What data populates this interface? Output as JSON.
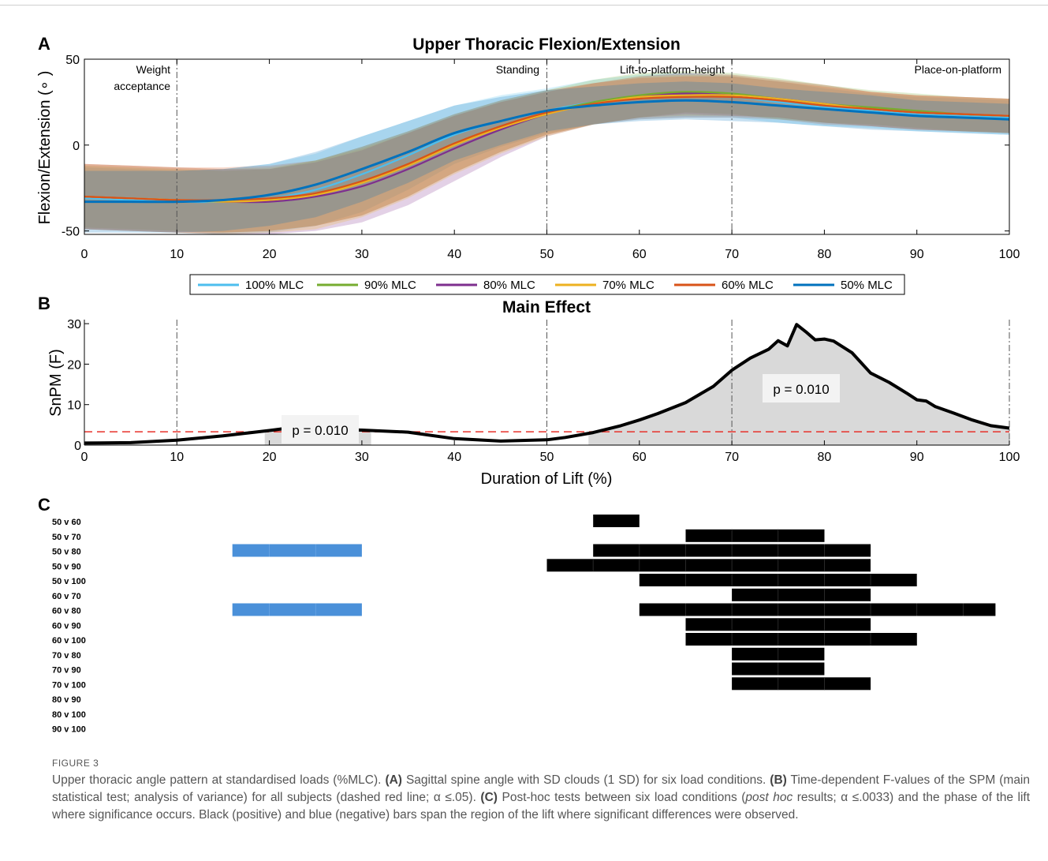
{
  "panels": {
    "a_label": "A",
    "b_label": "B",
    "c_label": "C"
  },
  "legend": [
    {
      "name": "100% MLC",
      "color": "#4dbeee"
    },
    {
      "name": "90% MLC",
      "color": "#77ac30"
    },
    {
      "name": "80% MLC",
      "color": "#7e2f8e"
    },
    {
      "name": "70% MLC",
      "color": "#edb120"
    },
    {
      "name": "60% MLC",
      "color": "#d95319"
    },
    {
      "name": "50% MLC",
      "color": "#0072bd"
    }
  ],
  "chart_data": [
    {
      "type": "line",
      "title": "Upper Thoracic Flexion/Extension",
      "ylabel": "Flexion/Extension (∘ )",
      "xlabel": "",
      "xlim": [
        0,
        100
      ],
      "ylim": [
        -52,
        50
      ],
      "xticks": [
        0,
        10,
        20,
        30,
        40,
        50,
        60,
        70,
        80,
        90,
        100
      ],
      "yticks": [
        -50,
        0,
        50
      ],
      "phase_lines": [
        10,
        50,
        70,
        100
      ],
      "phase_labels": [
        "Weight",
        "acceptance",
        "Standing",
        "Lift-to-platform-height",
        "Place-on-platform"
      ],
      "x": [
        0,
        5,
        10,
        15,
        20,
        25,
        30,
        35,
        40,
        45,
        50,
        55,
        60,
        65,
        70,
        75,
        80,
        85,
        90,
        95,
        100
      ],
      "series": [
        {
          "name": "100% MLC",
          "values": [
            -31,
            -32,
            -33,
            -33,
            -31,
            -26,
            -17,
            -6,
            6,
            14,
            20,
            25,
            28,
            29,
            28,
            25,
            22,
            20,
            18,
            17,
            16
          ],
          "sd": [
            18,
            18,
            18,
            19,
            20,
            21,
            22,
            20,
            17,
            15,
            13,
            13,
            13,
            13,
            12,
            12,
            11,
            10,
            10,
            10,
            10
          ]
        },
        {
          "name": "90% MLC",
          "values": [
            -30,
            -31,
            -32,
            -33,
            -32,
            -28,
            -21,
            -11,
            1,
            11,
            19,
            25,
            29,
            31,
            30,
            27,
            24,
            22,
            20,
            18,
            17
          ],
          "sd": [
            18,
            18,
            18,
            18,
            18,
            19,
            20,
            19,
            17,
            15,
            13,
            13,
            13,
            12,
            12,
            12,
            11,
            10,
            10,
            10,
            10
          ]
        },
        {
          "name": "80% MLC",
          "values": [
            -30,
            -31,
            -32,
            -33,
            -33,
            -30,
            -24,
            -14,
            -2,
            9,
            18,
            24,
            28,
            30,
            29,
            27,
            24,
            21,
            19,
            18,
            17
          ],
          "sd": [
            19,
            19,
            19,
            19,
            19,
            20,
            21,
            21,
            19,
            16,
            13,
            12,
            12,
            12,
            12,
            11,
            11,
            10,
            10,
            10,
            10
          ]
        },
        {
          "name": "70% MLC",
          "values": [
            -30,
            -31,
            -32,
            -33,
            -32,
            -29,
            -22,
            -12,
            0,
            10,
            18,
            24,
            28,
            29,
            29,
            27,
            24,
            21,
            19,
            18,
            17
          ],
          "sd": [
            19,
            19,
            19,
            19,
            19,
            20,
            20,
            19,
            17,
            15,
            13,
            12,
            12,
            12,
            12,
            11,
            11,
            10,
            10,
            10,
            10
          ]
        },
        {
          "name": "60% MLC",
          "values": [
            -30,
            -31,
            -32,
            -32,
            -31,
            -28,
            -21,
            -11,
            1,
            11,
            19,
            24,
            27,
            28,
            28,
            26,
            23,
            21,
            19,
            18,
            17
          ],
          "sd": [
            19,
            19,
            19,
            19,
            19,
            19,
            20,
            19,
            17,
            15,
            13,
            12,
            12,
            12,
            12,
            11,
            11,
            10,
            10,
            10,
            10
          ]
        },
        {
          "name": "50% MLC",
          "values": [
            -33,
            -33,
            -33,
            -32,
            -29,
            -23,
            -14,
            -4,
            7,
            14,
            20,
            23,
            25,
            26,
            25,
            23,
            21,
            19,
            17,
            16,
            15
          ],
          "sd": [
            18,
            18,
            18,
            18,
            18,
            19,
            19,
            18,
            16,
            14,
            12,
            11,
            11,
            11,
            11,
            10,
            10,
            10,
            9,
            9,
            9
          ]
        }
      ]
    },
    {
      "type": "area",
      "title": "Main Effect",
      "ylabel": "SnPM (F)",
      "xlabel": "Duration of Lift (%)",
      "xlim": [
        0,
        100
      ],
      "ylim": [
        0,
        31
      ],
      "xticks": [
        0,
        10,
        20,
        30,
        40,
        50,
        60,
        70,
        80,
        90,
        100
      ],
      "yticks": [
        0,
        10,
        20,
        30
      ],
      "threshold": 3.3,
      "phase_lines": [
        10,
        50,
        70,
        100
      ],
      "annotations": [
        "p = 0.010",
        "p = 0.010"
      ],
      "x": [
        0,
        5,
        10,
        15,
        20,
        22,
        25,
        28,
        30,
        35,
        40,
        45,
        50,
        52,
        55,
        58,
        60,
        62,
        65,
        68,
        70,
        72,
        74,
        75,
        76,
        77,
        78,
        79,
        80,
        81,
        83,
        85,
        87,
        89,
        90,
        91,
        92,
        94,
        96,
        98,
        100
      ],
      "values": [
        0.5,
        0.6,
        1.2,
        2.3,
        3.6,
        4.2,
        4.0,
        3.8,
        3.7,
        3.2,
        1.6,
        1.0,
        1.3,
        1.9,
        3.1,
        4.8,
        6.2,
        7.8,
        10.5,
        14.5,
        18.5,
        21.5,
        23.7,
        25.8,
        24.5,
        29.8,
        28.0,
        26.0,
        26.2,
        25.7,
        22.8,
        17.8,
        15.5,
        12.7,
        11.2,
        10.9,
        9.5,
        7.9,
        6.2,
        4.8,
        4.2
      ]
    },
    {
      "type": "bar",
      "xlabel": "",
      "xlim": [
        0,
        100
      ],
      "categories": [
        "50 v 60",
        "50 v 70",
        "50 v 80",
        "50 v 90",
        "50 v 100",
        "60 v 70",
        "60 v 80",
        "60 v 90",
        "60 v 100",
        "70 v 80",
        "70 v 90",
        "70 v 100",
        "80 v 90",
        "80 v 100",
        "90 v 100"
      ],
      "significant_segments": [
        {
          "pair": "50 v 60",
          "sign": "positive",
          "start": 55,
          "end": 60
        },
        {
          "pair": "50 v 70",
          "sign": "positive",
          "start": 65,
          "end": 80
        },
        {
          "pair": "50 v 80",
          "sign": "negative",
          "start": 16,
          "end": 30
        },
        {
          "pair": "50 v 80",
          "sign": "positive",
          "start": 55,
          "end": 85
        },
        {
          "pair": "50 v 90",
          "sign": "positive",
          "start": 50,
          "end": 85
        },
        {
          "pair": "50 v 100",
          "sign": "positive",
          "start": 60,
          "end": 90
        },
        {
          "pair": "60 v 70",
          "sign": "positive",
          "start": 70,
          "end": 85
        },
        {
          "pair": "60 v 80",
          "sign": "negative",
          "start": 16,
          "end": 30
        },
        {
          "pair": "60 v 80",
          "sign": "positive",
          "start": 60,
          "end": 98.5
        },
        {
          "pair": "60 v 90",
          "sign": "positive",
          "start": 65,
          "end": 85
        },
        {
          "pair": "60 v 100",
          "sign": "positive",
          "start": 65,
          "end": 90
        },
        {
          "pair": "70 v 80",
          "sign": "positive",
          "start": 70,
          "end": 80
        },
        {
          "pair": "70 v 90",
          "sign": "positive",
          "start": 70,
          "end": 80
        },
        {
          "pair": "70 v 100",
          "sign": "positive",
          "start": 70,
          "end": 85
        }
      ],
      "colors": {
        "positive": "#000000",
        "negative": "#4a90d9"
      }
    }
  ],
  "caption": {
    "label": "FIGURE 3",
    "text_html": "Upper thoracic angle pattern at standardised loads (%MLC). <b>(A)</b> Sagittal spine angle with SD clouds (1 SD) for six load conditions. <b>(B)</b> Time-dependent F-values of the SPM (main statistical test; analysis of variance) for all subjects (dashed red line; α ≤.05). <b>(C)</b> Post-hoc tests between six load conditions (<i>post hoc</i> results; α ≤.0033) and the phase of the lift where significance occurs. Black (positive) and blue (negative) bars span the region of the lift where significant differences were observed."
  }
}
